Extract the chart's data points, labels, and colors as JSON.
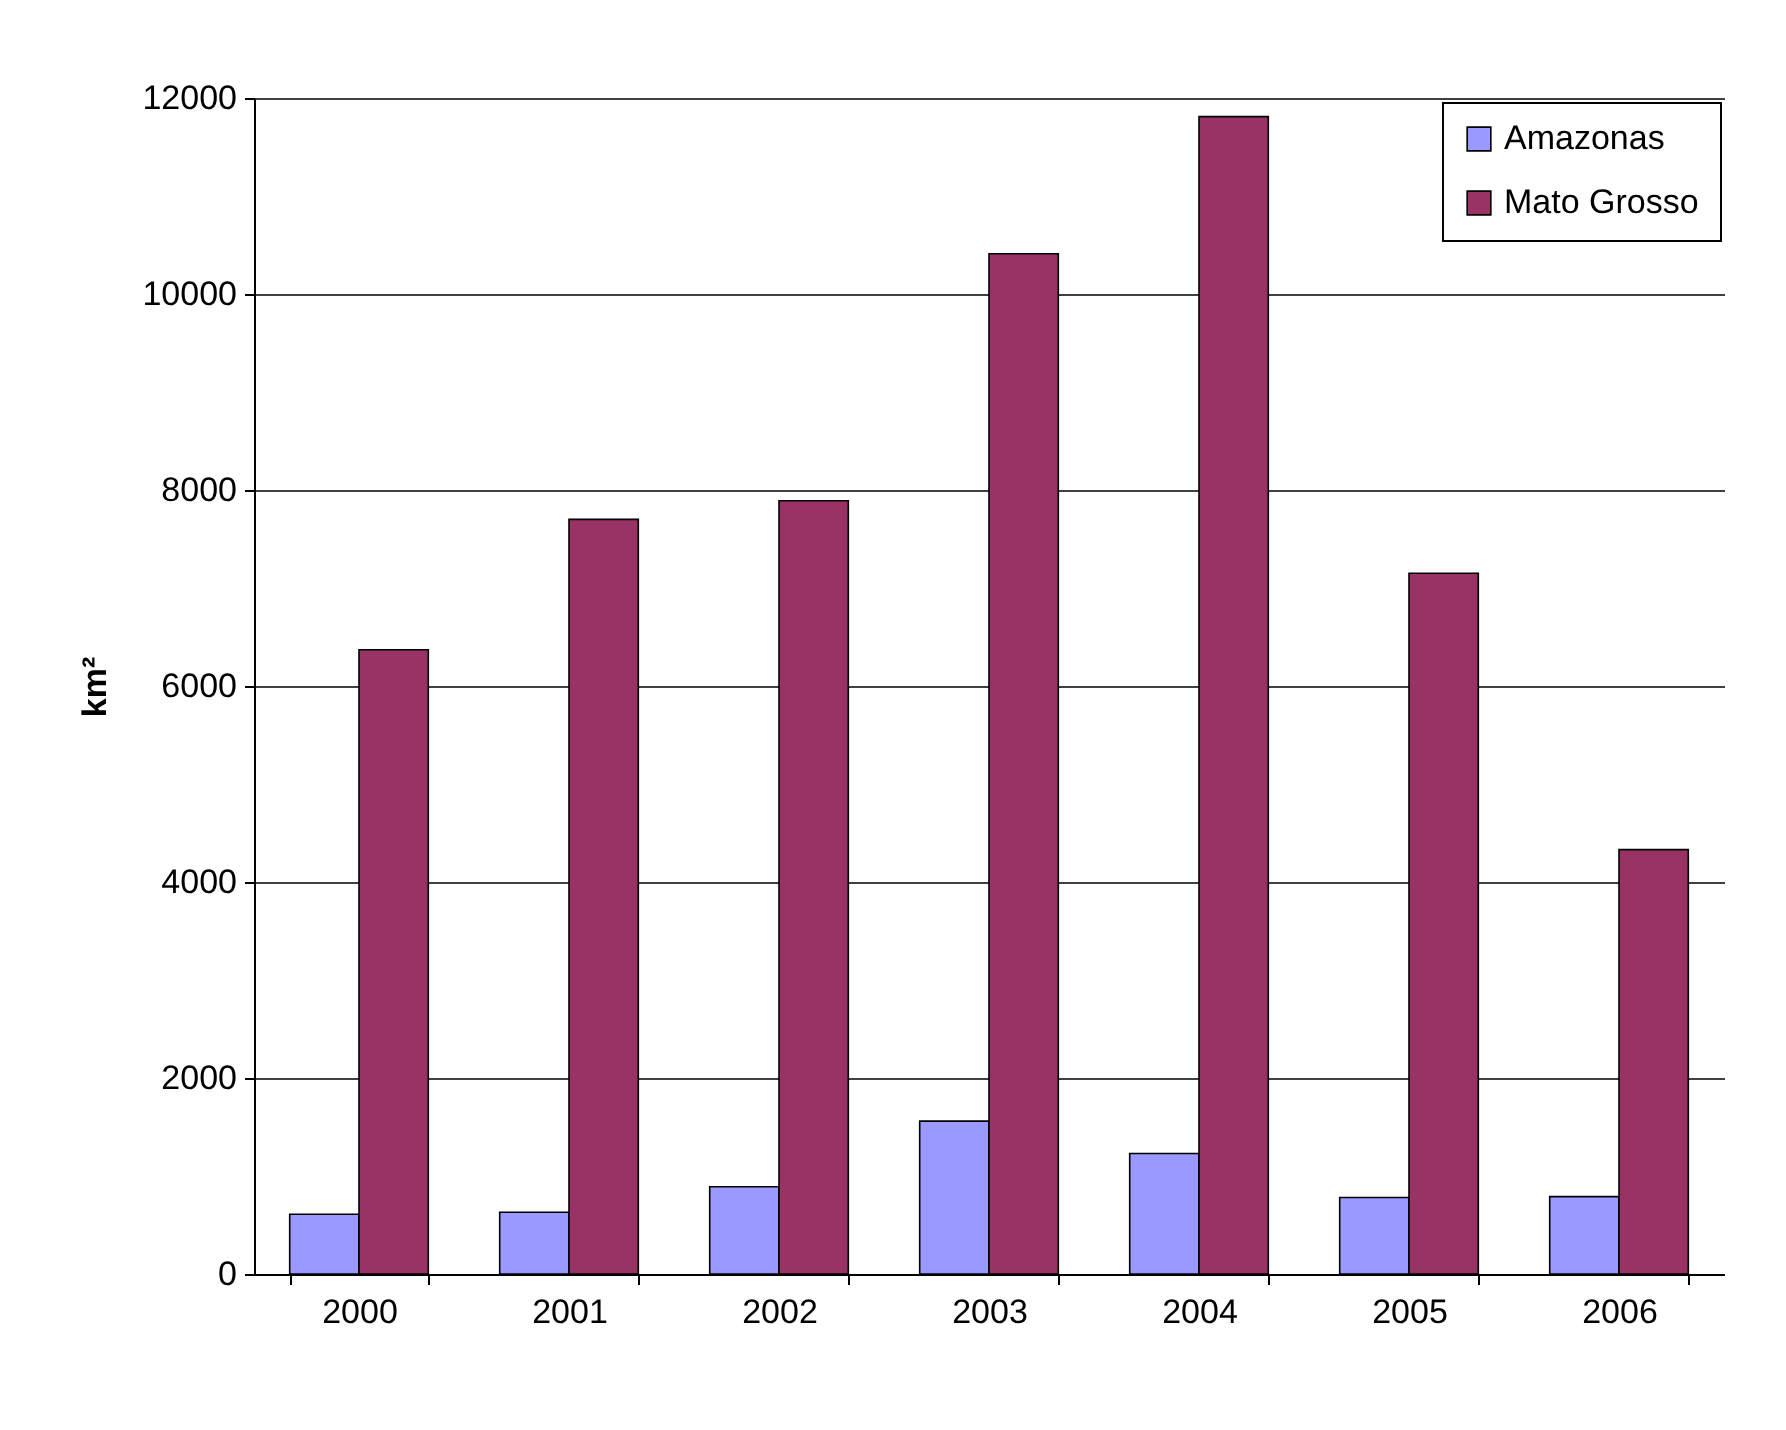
{
  "chart_data": {
    "type": "bar",
    "ylabel": "km²",
    "categories": [
      "2000",
      "2001",
      "2002",
      "2003",
      "2004",
      "2005",
      "2006"
    ],
    "series": [
      {
        "name": "Amazonas",
        "color": "#9999ff",
        "values": [
          610,
          630,
          890,
          1560,
          1230,
          780,
          790
        ]
      },
      {
        "name": "Mato Grosso",
        "color": "#993366",
        "values": [
          6370,
          7700,
          7890,
          10410,
          11810,
          7150,
          4330
        ]
      }
    ],
    "ylim": [
      0,
      12000
    ],
    "yticks": [
      0,
      2000,
      4000,
      6000,
      8000,
      10000,
      12000
    ],
    "grid": "y",
    "legend": "top right"
  }
}
